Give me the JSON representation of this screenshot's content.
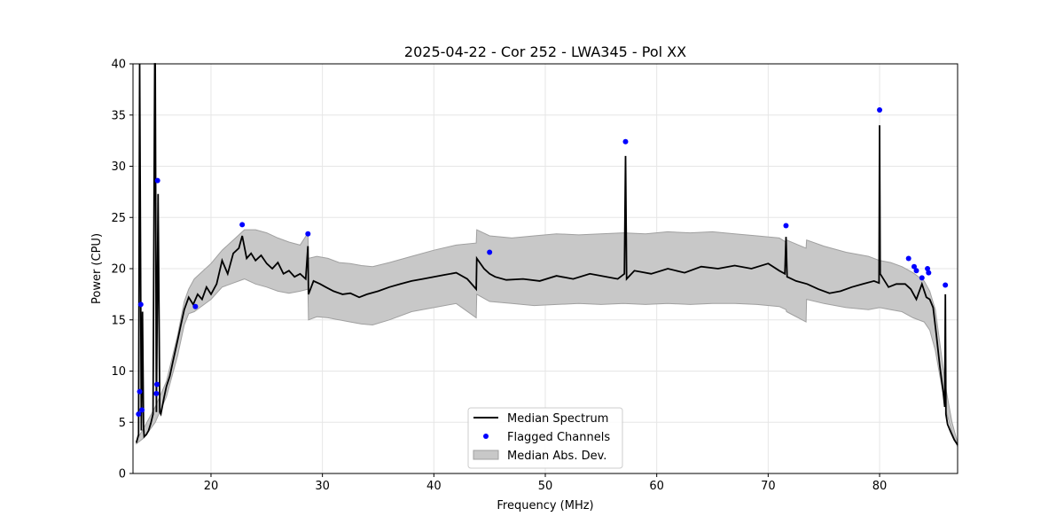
{
  "chart_data": {
    "type": "line",
    "title": "2025-04-22 - Cor 252 - LWA345 - Pol XX",
    "xlabel": "Frequency (MHz)",
    "ylabel": "Power (CPU)",
    "xlim": [
      13,
      87
    ],
    "ylim": [
      0,
      40
    ],
    "xticks": [
      20,
      30,
      40,
      50,
      60,
      70,
      80
    ],
    "yticks": [
      0,
      5,
      10,
      15,
      20,
      25,
      30,
      35,
      40
    ],
    "grid": true,
    "legend_position": "bottom-center",
    "legend": {
      "median": "Median Spectrum",
      "flagged": "Flagged Channels",
      "mad": "Median Abs. Dev."
    },
    "colors": {
      "median": "#000000",
      "flagged": "#0000ff",
      "mad_fill": "#c8c8c8",
      "mad_edge": "#a0a0a0",
      "grid": "#e6e6e6"
    },
    "series": [
      {
        "name": "Median Spectrum",
        "x": [
          13.3,
          13.5,
          13.6,
          13.75,
          13.85,
          13.95,
          14.0,
          14.2,
          14.4,
          14.6,
          14.8,
          14.95,
          15.0,
          15.1,
          15.25,
          15.4,
          15.5,
          15.8,
          16.0,
          16.3,
          16.6,
          17.0,
          17.3,
          17.6,
          18.0,
          18.4,
          18.8,
          19.2,
          19.6,
          20.0,
          20.5,
          21.0,
          21.5,
          22.0,
          22.5,
          22.8,
          23.2,
          23.6,
          24.0,
          24.5,
          25.0,
          25.5,
          26.0,
          26.5,
          27.0,
          27.5,
          28.0,
          28.5,
          28.7,
          28.75,
          29.2,
          29.8,
          30.3,
          31.0,
          31.8,
          32.5,
          33.3,
          34.0,
          35.0,
          36.0,
          37.0,
          38.0,
          39.0,
          40.0,
          41.0,
          42.0,
          43.0,
          43.8,
          43.85,
          44.5,
          45.0,
          45.5,
          46.5,
          48.0,
          49.5,
          51.0,
          52.5,
          54.0,
          55.5,
          56.5,
          57.1,
          57.2,
          57.3,
          58.0,
          59.5,
          61.0,
          62.5,
          64.0,
          65.5,
          67.0,
          68.5,
          70.0,
          71.0,
          71.5,
          71.6,
          71.7,
          72.5,
          73.5,
          74.5,
          75.5,
          76.5,
          77.5,
          78.5,
          79.5,
          79.95,
          80.0,
          80.05,
          80.8,
          81.5,
          82.3,
          82.8,
          83.3,
          83.8,
          84.2,
          84.5,
          84.8,
          85.1,
          85.4,
          85.7,
          85.85,
          85.9,
          85.95,
          86.1,
          86.4,
          86.7,
          87.0
        ],
        "values": [
          3.0,
          3.8,
          40,
          4.2,
          15.8,
          4.5,
          3.6,
          3.8,
          4.2,
          4.9,
          5.8,
          40,
          40,
          6.0,
          27.3,
          6.0,
          5.8,
          7.5,
          8.5,
          9.5,
          11.0,
          13.0,
          14.5,
          16.0,
          17.2,
          16.5,
          17.5,
          17.0,
          18.2,
          17.5,
          18.5,
          20.8,
          19.5,
          21.5,
          22.0,
          23.2,
          21.0,
          21.5,
          20.8,
          21.3,
          20.5,
          20.0,
          20.6,
          19.5,
          19.8,
          19.2,
          19.5,
          19.0,
          22.2,
          17.5,
          18.8,
          18.5,
          18.2,
          17.8,
          17.5,
          17.6,
          17.2,
          17.5,
          17.8,
          18.2,
          18.5,
          18.8,
          19.0,
          19.2,
          19.4,
          19.6,
          19.0,
          18.0,
          21.0,
          20.0,
          19.5,
          19.2,
          18.9,
          19.0,
          18.8,
          19.3,
          19.0,
          19.5,
          19.2,
          19.0,
          19.5,
          31.0,
          19.0,
          19.8,
          19.5,
          20.0,
          19.6,
          20.2,
          20.0,
          20.3,
          20.0,
          20.5,
          19.8,
          19.5,
          23.1,
          19.2,
          18.8,
          18.5,
          18.0,
          17.6,
          17.8,
          18.2,
          18.5,
          18.8,
          18.6,
          34.0,
          19.5,
          18.2,
          18.5,
          18.5,
          18.0,
          17.0,
          18.5,
          17.2,
          17.0,
          16.2,
          13.5,
          10.5,
          8.0,
          6.5,
          17.5,
          5.8,
          4.8,
          4.0,
          3.3,
          2.8
        ]
      },
      {
        "name": "Flagged Channels",
        "points": [
          {
            "x": 13.5,
            "y": 5.8
          },
          {
            "x": 13.6,
            "y": 8.0
          },
          {
            "x": 13.7,
            "y": 16.5
          },
          {
            "x": 13.8,
            "y": 6.2
          },
          {
            "x": 15.1,
            "y": 7.8
          },
          {
            "x": 15.15,
            "y": 8.7
          },
          {
            "x": 15.2,
            "y": 28.6
          },
          {
            "x": 18.6,
            "y": 16.3
          },
          {
            "x": 22.8,
            "y": 24.3
          },
          {
            "x": 28.7,
            "y": 23.4
          },
          {
            "x": 45.0,
            "y": 21.6
          },
          {
            "x": 57.2,
            "y": 32.4
          },
          {
            "x": 71.6,
            "y": 24.2
          },
          {
            "x": 80.0,
            "y": 35.5
          },
          {
            "x": 82.6,
            "y": 21.0
          },
          {
            "x": 83.1,
            "y": 20.2
          },
          {
            "x": 83.3,
            "y": 19.8
          },
          {
            "x": 83.8,
            "y": 19.1
          },
          {
            "x": 84.3,
            "y": 20.0
          },
          {
            "x": 84.4,
            "y": 19.6
          },
          {
            "x": 85.9,
            "y": 18.4
          }
        ]
      },
      {
        "name": "Median Abs. Dev.",
        "x": [
          13.3,
          14.0,
          15.0,
          16.0,
          17.0,
          17.6,
          18.0,
          18.5,
          19.0,
          20.0,
          21.0,
          22.0,
          23.0,
          24.0,
          25.0,
          26.0,
          27.0,
          28.0,
          28.7,
          28.75,
          29.5,
          30.5,
          31.5,
          32.5,
          33.5,
          34.5,
          36.0,
          38.0,
          40.0,
          42.0,
          43.8,
          43.85,
          45.0,
          47.0,
          49.0,
          51.0,
          53.0,
          55.0,
          57.0,
          59.0,
          61.0,
          63.0,
          65.0,
          67.0,
          69.0,
          71.0,
          71.6,
          71.65,
          73.4,
          73.45,
          75.0,
          77.0,
          79.0,
          80.0,
          81.0,
          82.0,
          83.0,
          84.0,
          84.5,
          85.0,
          85.5,
          86.0,
          86.5,
          87.0
        ],
        "upper": [
          3.2,
          4.5,
          6.5,
          9.0,
          13.5,
          16.8,
          18.0,
          19.0,
          19.5,
          20.5,
          21.8,
          22.8,
          23.8,
          23.8,
          23.5,
          23.0,
          22.6,
          22.3,
          23.5,
          21.0,
          21.2,
          21.0,
          20.6,
          20.5,
          20.3,
          20.2,
          20.6,
          21.2,
          21.8,
          22.3,
          22.5,
          23.8,
          23.2,
          23.0,
          23.2,
          23.4,
          23.3,
          23.4,
          23.5,
          23.4,
          23.6,
          23.5,
          23.6,
          23.4,
          23.2,
          23.0,
          22.6,
          22.8,
          22.0,
          22.8,
          22.2,
          21.6,
          21.2,
          20.8,
          20.6,
          20.2,
          19.6,
          18.8,
          17.8,
          16.0,
          12.0,
          8.0,
          5.0,
          3.0
        ],
        "lower": [
          2.9,
          3.5,
          5.0,
          7.5,
          11.5,
          14.5,
          15.6,
          15.8,
          16.2,
          17.0,
          18.2,
          18.6,
          19.0,
          18.5,
          18.2,
          17.8,
          17.6,
          17.8,
          18.0,
          15.0,
          15.3,
          15.2,
          15.0,
          14.8,
          14.6,
          14.5,
          15.0,
          15.8,
          16.2,
          16.6,
          15.2,
          17.5,
          16.8,
          16.6,
          16.4,
          16.5,
          16.6,
          16.5,
          16.6,
          16.5,
          16.6,
          16.5,
          16.6,
          16.6,
          16.5,
          16.3,
          16.0,
          15.8,
          14.8,
          17.0,
          16.6,
          16.2,
          16.0,
          16.2,
          16.0,
          15.8,
          15.2,
          14.8,
          14.0,
          12.0,
          9.0,
          6.0,
          4.0,
          2.6
        ]
      }
    ]
  }
}
